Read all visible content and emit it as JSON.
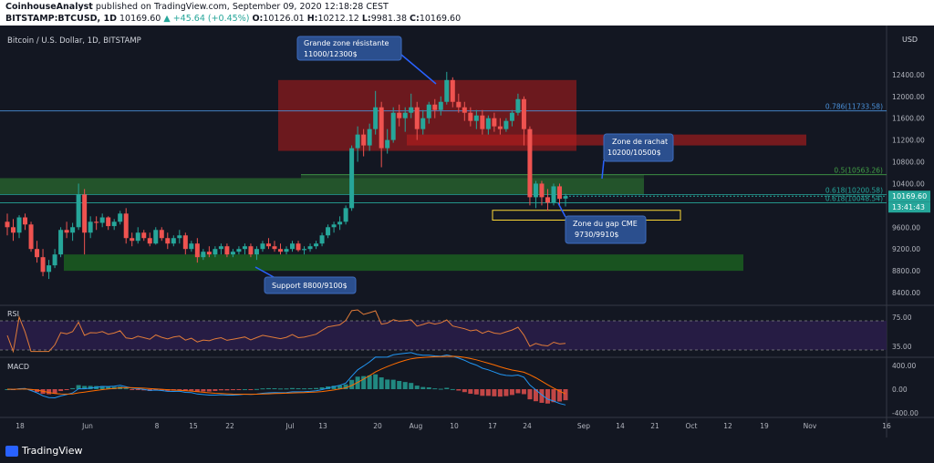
{
  "header": {
    "author": "CoinhouseAnalyst",
    "published": " published on TradingView.com, September 09, 2020 12:18:28 CEST",
    "symbol": "BITSTAMP:BTCUSD, 1D",
    "last": "10169.60",
    "change": "▲ +45.64 (+0.45%)",
    "o_label": "O:",
    "o": "10126.01",
    "h_label": "H:",
    "h": "10212.12",
    "l_label": "L:",
    "l": "9981.38",
    "c_label": "C:",
    "c": "10169.60"
  },
  "footer": {
    "brand": "TradingView"
  },
  "chart_data": {
    "type": "candlestick",
    "title": "Bitcoin / U.S. Dollar, 1D, BITSTAMP",
    "currency": "USD",
    "ylim": [
      8200,
      13200
    ],
    "y_ticks": [
      "12400.00",
      "12000.00",
      "11600.00",
      "11200.00",
      "10800.00",
      "10400.00",
      "10000.00",
      "9600.00",
      "9200.00",
      "8800.00",
      "8400.00"
    ],
    "x_ticks": [
      "18",
      "Jun",
      "8",
      "15",
      "22",
      "Jul",
      "13",
      "20",
      "Aug",
      "10",
      "17",
      "24",
      "Sep",
      "14",
      "21",
      "Oct",
      "12",
      "19",
      "Nov",
      "16"
    ],
    "price_label": "10169.60",
    "time_label": "13:41:43",
    "fib_levels": [
      {
        "label": "0.786(11733.58)",
        "value": 11733.58,
        "color": "#4a90d9"
      },
      {
        "label": "0.5(10563.26)",
        "value": 10563.26,
        "color": "#43a047"
      },
      {
        "label": "0.618(10200.58)",
        "value": 10200.58,
        "color": "#26a69a"
      },
      {
        "label": "0.618(10048.54)",
        "value": 10048.54,
        "color": "#26a69a"
      }
    ],
    "zones": [
      {
        "name": "resistance",
        "y": [
          11000,
          12300
        ],
        "color": "#b71c1c"
      },
      {
        "name": "rachat",
        "y": [
          10200,
          10500
        ],
        "color": "#2e7d32"
      },
      {
        "name": "support",
        "y": [
          8800,
          9100
        ],
        "color": "#1b5e20"
      },
      {
        "name": "cme-gap",
        "y": [
          9730,
          9910
        ],
        "color": "#fdd835"
      }
    ],
    "annotations": [
      {
        "text": [
          "Grande zone résistante",
          "11000/12300$"
        ]
      },
      {
        "text": [
          "Zone de rachat",
          "10200/10500$"
        ]
      },
      {
        "text": [
          "Zone du gap CME",
          "9730/9910$"
        ]
      },
      {
        "text": [
          "Support 8800/9100$"
        ]
      }
    ],
    "rsi": {
      "label": "RSI",
      "ticks": [
        "75.00",
        "35.00"
      ],
      "upper": 70,
      "lower": 30
    },
    "macd": {
      "label": "MACD",
      "ticks": [
        "400.00",
        "0.00",
        "-400.00"
      ]
    },
    "candles": [
      [
        9700,
        9850,
        9450,
        9600
      ],
      [
        9600,
        9750,
        9350,
        9500
      ],
      [
        9500,
        9820,
        9400,
        9780
      ],
      [
        9780,
        9850,
        9550,
        9650
      ],
      [
        9650,
        9700,
        9150,
        9200
      ],
      [
        9200,
        9350,
        8950,
        9050
      ],
      [
        9050,
        9200,
        8700,
        8780
      ],
      [
        8780,
        9000,
        8650,
        8900
      ],
      [
        8900,
        9200,
        8850,
        9100
      ],
      [
        9100,
        9600,
        9050,
        9550
      ],
      [
        9550,
        9700,
        9400,
        9500
      ],
      [
        9500,
        9680,
        9350,
        9600
      ],
      [
        9600,
        10400,
        9550,
        10200
      ],
      [
        10200,
        10300,
        9100,
        9500
      ],
      [
        9500,
        9800,
        9400,
        9700
      ],
      [
        9700,
        9800,
        9550,
        9680
      ],
      [
        9680,
        9850,
        9600,
        9780
      ],
      [
        9780,
        9800,
        9550,
        9620
      ],
      [
        9620,
        9750,
        9550,
        9700
      ],
      [
        9700,
        9900,
        9650,
        9850
      ],
      [
        9850,
        9950,
        9300,
        9400
      ],
      [
        9400,
        9500,
        9250,
        9350
      ],
      [
        9350,
        9600,
        9300,
        9500
      ],
      [
        9500,
        9550,
        9350,
        9400
      ],
      [
        9400,
        9500,
        9250,
        9300
      ],
      [
        9300,
        9600,
        9280,
        9550
      ],
      [
        9550,
        9600,
        9350,
        9400
      ],
      [
        9400,
        9500,
        9200,
        9300
      ],
      [
        9300,
        9450,
        9250,
        9400
      ],
      [
        9400,
        9550,
        9300,
        9450
      ],
      [
        9450,
        9500,
        9100,
        9200
      ],
      [
        9200,
        9350,
        9150,
        9300
      ],
      [
        9300,
        9400,
        8950,
        9050
      ],
      [
        9050,
        9200,
        9000,
        9150
      ],
      [
        9150,
        9250,
        9050,
        9100
      ],
      [
        9100,
        9250,
        9050,
        9200
      ],
      [
        9200,
        9300,
        9100,
        9250
      ],
      [
        9250,
        9300,
        9050,
        9100
      ],
      [
        9100,
        9200,
        9050,
        9150
      ],
      [
        9150,
        9250,
        9100,
        9200
      ],
      [
        9200,
        9300,
        9100,
        9250
      ],
      [
        9250,
        9300,
        9050,
        9100
      ],
      [
        9100,
        9250,
        9000,
        9200
      ],
      [
        9200,
        9350,
        9150,
        9300
      ],
      [
        9300,
        9400,
        9200,
        9250
      ],
      [
        9250,
        9350,
        9150,
        9200
      ],
      [
        9200,
        9300,
        9100,
        9150
      ],
      [
        9150,
        9250,
        9100,
        9200
      ],
      [
        9200,
        9350,
        9150,
        9300
      ],
      [
        9300,
        9350,
        9150,
        9180
      ],
      [
        9180,
        9250,
        9100,
        9200
      ],
      [
        9200,
        9300,
        9150,
        9250
      ],
      [
        9250,
        9350,
        9200,
        9300
      ],
      [
        9300,
        9500,
        9250,
        9450
      ],
      [
        9450,
        9650,
        9400,
        9600
      ],
      [
        9600,
        9700,
        9500,
        9650
      ],
      [
        9650,
        9800,
        9550,
        9700
      ],
      [
        9700,
        10000,
        9650,
        9950
      ],
      [
        9950,
        11100,
        9900,
        11050
      ],
      [
        11050,
        11450,
        10800,
        11300
      ],
      [
        11300,
        11400,
        10900,
        11100
      ],
      [
        11100,
        11500,
        11000,
        11400
      ],
      [
        11400,
        12100,
        11300,
        11800
      ],
      [
        11800,
        11900,
        10700,
        11050
      ],
      [
        11050,
        11400,
        10950,
        11200
      ],
      [
        11200,
        11800,
        11150,
        11700
      ],
      [
        11700,
        11850,
        11450,
        11600
      ],
      [
        11600,
        11800,
        11350,
        11700
      ],
      [
        11700,
        12050,
        11600,
        11800
      ],
      [
        11800,
        11900,
        11200,
        11400
      ],
      [
        11400,
        11750,
        11300,
        11600
      ],
      [
        11600,
        11900,
        11500,
        11850
      ],
      [
        11850,
        11950,
        11600,
        11750
      ],
      [
        11750,
        12000,
        11650,
        11900
      ],
      [
        11900,
        12450,
        11850,
        12300
      ],
      [
        12300,
        12350,
        11800,
        11900
      ],
      [
        11900,
        12050,
        11700,
        11800
      ],
      [
        11800,
        11900,
        11550,
        11700
      ],
      [
        11700,
        11800,
        11450,
        11550
      ],
      [
        11550,
        11750,
        11400,
        11650
      ],
      [
        11650,
        11750,
        11300,
        11400
      ],
      [
        11400,
        11650,
        11300,
        11600
      ],
      [
        11600,
        11700,
        11350,
        11450
      ],
      [
        11450,
        11600,
        11300,
        11400
      ],
      [
        11400,
        11600,
        11350,
        11550
      ],
      [
        11550,
        11750,
        11450,
        11700
      ],
      [
        11700,
        12050,
        11650,
        11950
      ],
      [
        11950,
        12000,
        11100,
        11400
      ],
      [
        11400,
        11450,
        10000,
        10150
      ],
      [
        10150,
        10450,
        9950,
        10400
      ],
      [
        10400,
        10450,
        10000,
        10150
      ],
      [
        10150,
        10300,
        9900,
        10050
      ],
      [
        10050,
        10400,
        10000,
        10350
      ],
      [
        10350,
        10400,
        9990,
        10120
      ],
      [
        10126,
        10212,
        9981,
        10170
      ]
    ]
  }
}
